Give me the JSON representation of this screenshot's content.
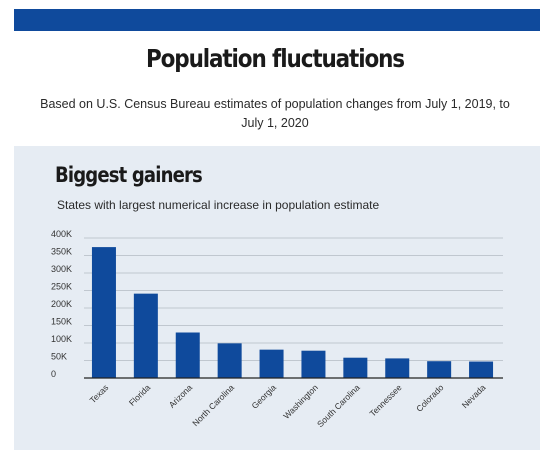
{
  "header": {
    "title": "Population fluctuations",
    "subtitle": "Based on U.S. Census Bureau estimates of population changes from July 1, 2019, to July 1, 2020"
  },
  "colors": {
    "accent": "#0f4a9c",
    "panel_bg": "#e6ecf3",
    "bar": "#0f4a9c"
  },
  "chart_data": {
    "type": "bar",
    "title": "Biggest gainers",
    "subtitle": "States with largest numerical increase in population estimate",
    "xlabel": "",
    "ylabel": "",
    "categories": [
      "Texas",
      "Florida",
      "Arizona",
      "North Carolina",
      "Georgia",
      "Washington",
      "South Carolina",
      "Tennessee",
      "Colorado",
      "Nevada"
    ],
    "values": [
      374000,
      241000,
      130000,
      99000,
      81000,
      78000,
      58000,
      56000,
      48000,
      47000
    ],
    "ylim": [
      0,
      400000
    ],
    "yticks": [
      0,
      50000,
      100000,
      150000,
      200000,
      250000,
      300000,
      350000,
      400000
    ],
    "ytick_labels": [
      "0",
      "50K",
      "100K",
      "150K",
      "200K",
      "250K",
      "300K",
      "350K",
      "400K"
    ],
    "grid": true,
    "legend": "none"
  }
}
